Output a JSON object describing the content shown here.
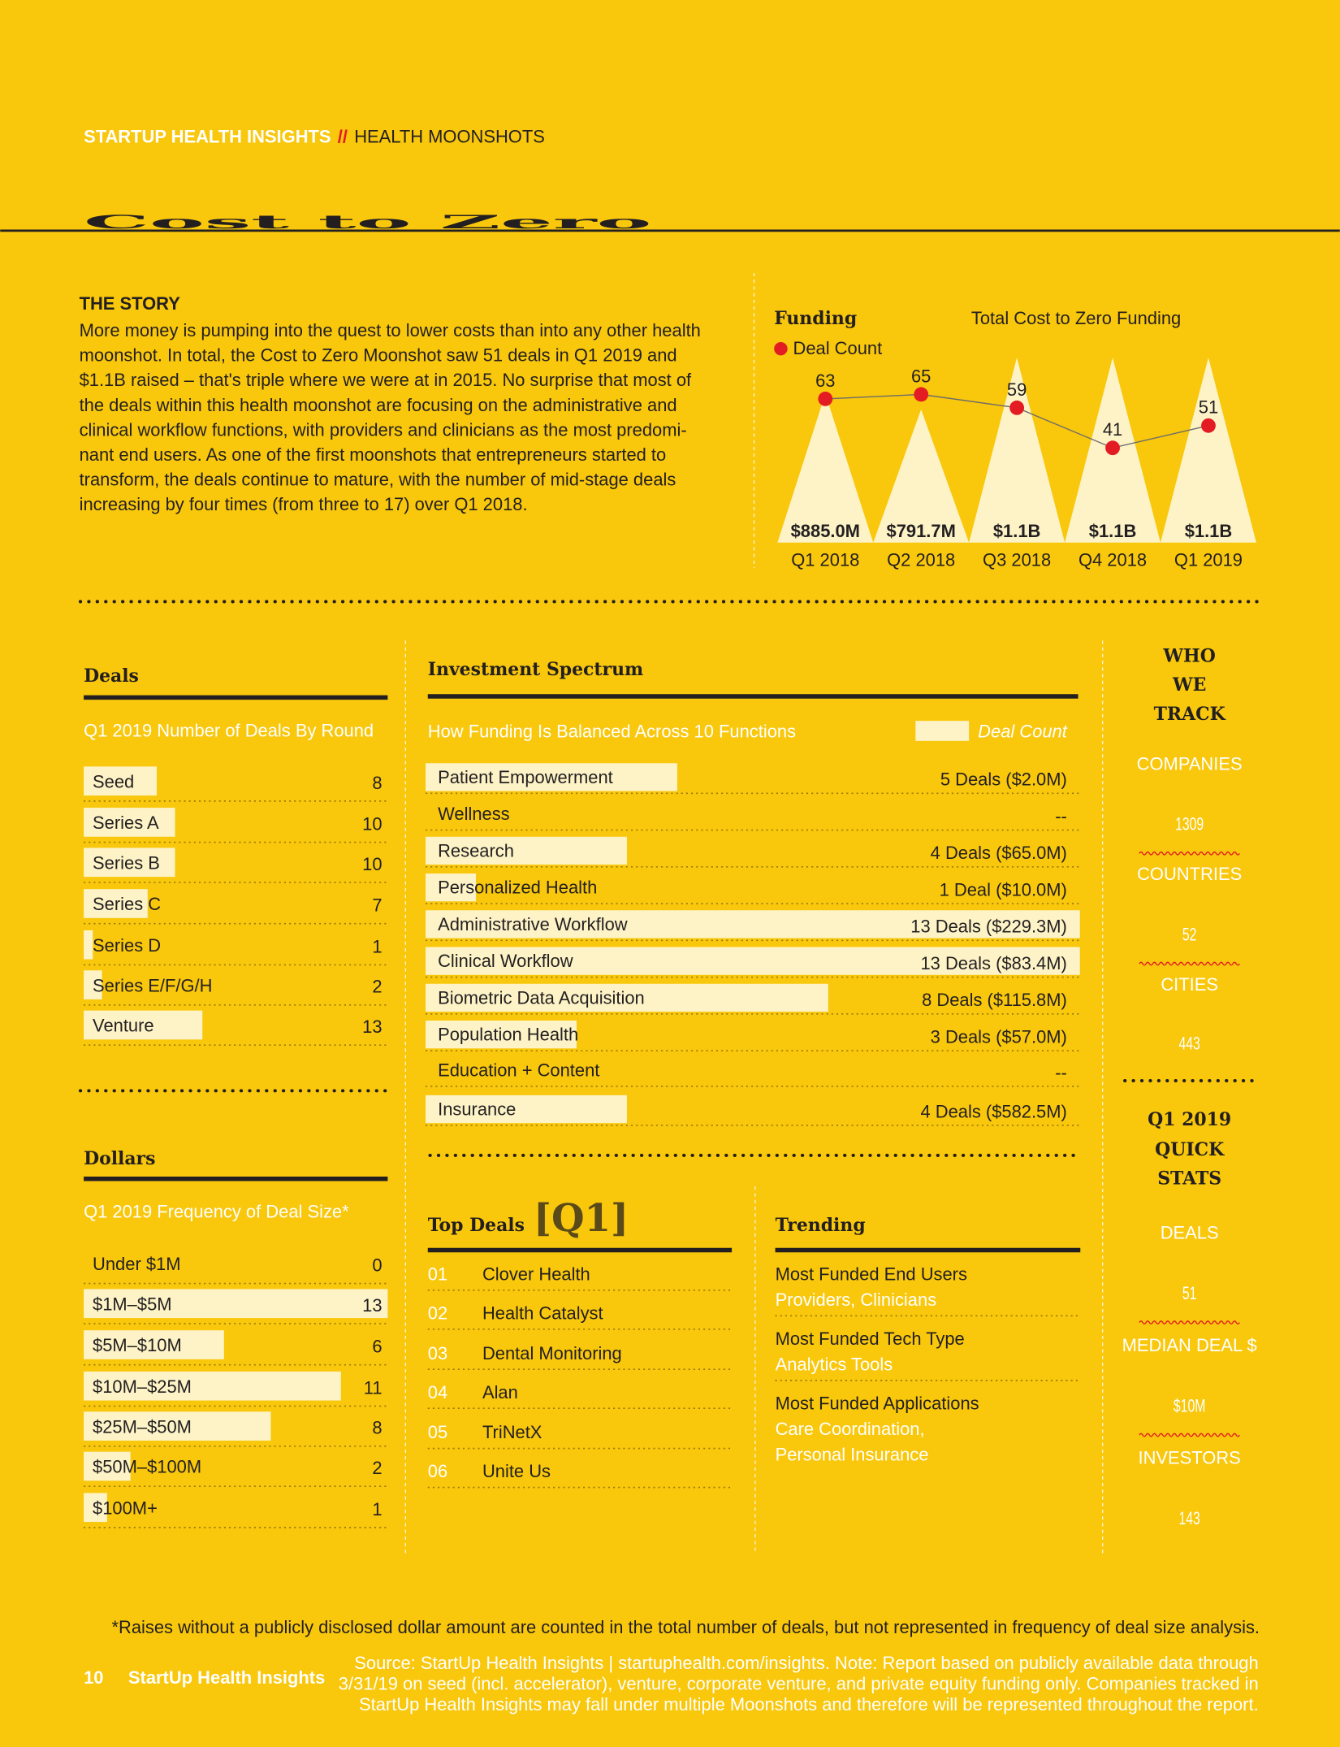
{
  "header": {
    "kicker": "STARTUP HEALTH INSIGHTS",
    "separator": "//",
    "section": "HEALTH MOONSHOTS",
    "title": "Cost to Zero"
  },
  "story": {
    "heading": "THE STORY",
    "lines": [
      "More money is pumping into the quest to lower costs than into any other health",
      "moonshot. In total, the Cost to Zero Moonshot saw 51 deals in Q1 2019 and",
      "$1.1B raised – that's triple where we were at in 2015. No surprise that most of",
      "the deals within this health moonshot are focusing on the administrative and",
      "clinical workflow functions, with providers and clinicians as the most predomi-",
      "nant end users. As one of the first moonshots that entrepreneurs started to",
      "transform, the deals continue to mature, with the number of mid-stage deals",
      "increasing by four times (from three to 17) over Q1 2018."
    ]
  },
  "funding": {
    "type": "bar",
    "title": "Funding",
    "subtitle": "Total Cost to Zero Funding",
    "legend": "Deal Count",
    "categories": [
      "Q1 2018",
      "Q2 2018",
      "Q3 2018",
      "Q4 2018",
      "Q1 2019"
    ],
    "values": [
      885.0,
      791.7,
      1100,
      1100,
      1100
    ],
    "value_labels": [
      "$885.0M",
      "$791.7M",
      "$1.1B",
      "$1.1B",
      "$1.1B"
    ],
    "deal_counts": [
      63,
      65,
      59,
      41,
      51
    ],
    "bar_color": "#fdf3c7",
    "dot_color": "#e31b23"
  },
  "deals": {
    "title": "Deals",
    "subtitle": "Q1 2019 Number of Deals By Round",
    "rows": [
      {
        "label": "Seed",
        "value": 8
      },
      {
        "label": "Series A",
        "value": 10
      },
      {
        "label": "Series B",
        "value": 10
      },
      {
        "label": "Series C",
        "value": 7
      },
      {
        "label": "Series D",
        "value": 1
      },
      {
        "label": "Series E/F/G/H",
        "value": 2
      },
      {
        "label": "Venture",
        "value": 13
      }
    ]
  },
  "dollars": {
    "title": "Dollars",
    "subtitle": "Q1 2019 Frequency of Deal Size*",
    "rows": [
      {
        "label": "Under $1M",
        "value": 0
      },
      {
        "label": "$1M–$5M",
        "value": 13
      },
      {
        "label": "$5M–$10M",
        "value": 6
      },
      {
        "label": "$10M–$25M",
        "value": 11
      },
      {
        "label": "$25M–$50M",
        "value": 8
      },
      {
        "label": "$50M–$100M",
        "value": 2
      },
      {
        "label": "$100M+",
        "value": 1
      }
    ]
  },
  "spectrum": {
    "title": "Investment Spectrum",
    "subtitle": "How Funding Is Balanced Across 10 Functions",
    "legend": "Deal Count",
    "rows": [
      {
        "label": "Patient Empowerment",
        "value": 5,
        "value_label": "5 Deals ($2.0M)"
      },
      {
        "label": "Wellness",
        "value": null,
        "value_label": "--"
      },
      {
        "label": "Research",
        "value": 4,
        "value_label": "4 Deals ($65.0M)"
      },
      {
        "label": "Personalized Health",
        "value": 1,
        "value_label": "1 Deal ($10.0M)"
      },
      {
        "label": "Administrative Workflow",
        "value": 13,
        "value_label": "13 Deals ($229.3M)"
      },
      {
        "label": "Clinical Workflow",
        "value": 13,
        "value_label": "13 Deals ($83.4M)"
      },
      {
        "label": "Biometric Data Acquisition",
        "value": 8,
        "value_label": "8 Deals ($115.8M)"
      },
      {
        "label": "Population Health",
        "value": 3,
        "value_label": "3 Deals ($57.0M)"
      },
      {
        "label": "Education + Content",
        "value": null,
        "value_label": "--"
      },
      {
        "label": "Insurance",
        "value": 4,
        "value_label": "4 Deals ($582.5M)"
      }
    ]
  },
  "top_deals": {
    "title": "Top Deals",
    "tag": "[Q1]",
    "rows": [
      {
        "rank": "01",
        "name": "Clover Health"
      },
      {
        "rank": "02",
        "name": "Health Catalyst"
      },
      {
        "rank": "03",
        "name": "Dental Monitoring"
      },
      {
        "rank": "04",
        "name": "Alan"
      },
      {
        "rank": "05",
        "name": "TriNetX"
      },
      {
        "rank": "06",
        "name": "Unite Us"
      }
    ]
  },
  "trending": {
    "title": "Trending",
    "items": [
      {
        "label": "Most Funded End Users",
        "lines": [
          "Providers, Clinicians"
        ]
      },
      {
        "label": "Most Funded Tech Type",
        "lines": [
          "Analytics Tools"
        ]
      },
      {
        "label": "Most Funded Applications",
        "lines": [
          "Care Coordination,",
          "Personal Insurance"
        ]
      }
    ]
  },
  "who_we_track": {
    "title_lines": [
      "WHO",
      "WE",
      "TRACK"
    ],
    "stats": [
      {
        "label": "COMPANIES",
        "value": 1309
      },
      {
        "label": "COUNTRIES",
        "value": 52
      },
      {
        "label": "CITIES",
        "value": 443
      }
    ]
  },
  "quick_stats": {
    "title_lines": [
      "Q1 2019",
      "QUICK",
      "STATS"
    ],
    "stats": [
      {
        "label": "DEALS",
        "value": 51
      },
      {
        "label": "MEDIAN DEAL $",
        "value": "$10M"
      },
      {
        "label": "INVESTORS",
        "value": 143
      }
    ]
  },
  "footer": {
    "footnote": "*Raises without a publicly disclosed dollar amount are counted in the total number of deals, but not represented in frequency of deal size analysis.",
    "page": "10",
    "brand": "StartUp Health Insights",
    "source_lines": [
      "Source: StartUp Health Insights | startuphealth.com/insights. Note: Report based on publicly available data through",
      "3/31/19 on seed (incl. accelerator), venture, corporate venture, and private equity funding only. Companies tracked in",
      "StartUp Health Insights may fall under multiple Moonshots and therefore will be represented throughout the report."
    ]
  }
}
